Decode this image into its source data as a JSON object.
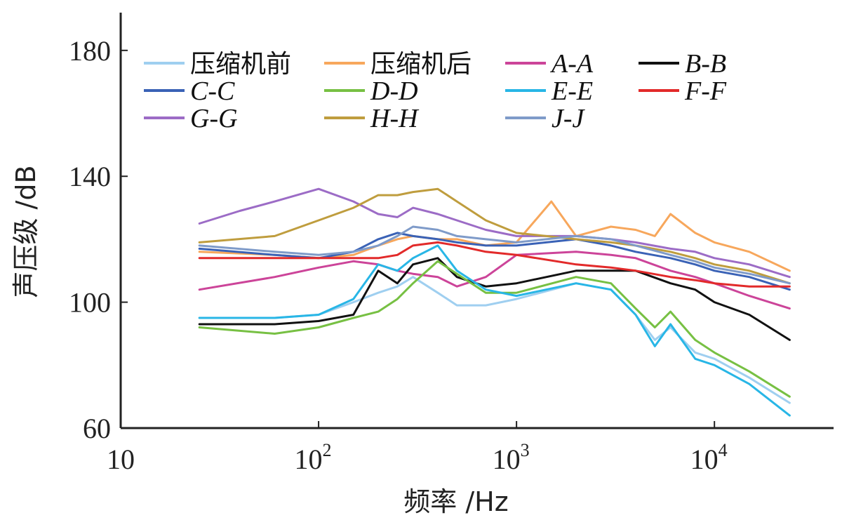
{
  "chart_data": {
    "type": "line",
    "title": "",
    "xlabel": "频率 /Hz",
    "ylabel": "声压级 /dB",
    "x_scale": "log",
    "xlim": [
      10,
      40000
    ],
    "ylim": [
      60,
      192
    ],
    "x_ticks": [
      {
        "value": 10,
        "base": "10",
        "exp": ""
      },
      {
        "value": 100,
        "base": "10",
        "exp": "2"
      },
      {
        "value": 1000,
        "base": "10",
        "exp": "3"
      },
      {
        "value": 10000,
        "base": "10",
        "exp": "4"
      }
    ],
    "y_ticks": [
      60,
      100,
      140,
      180
    ],
    "grid": false,
    "legend_position": "top",
    "series": [
      {
        "name": "压缩机前",
        "color": "#9fcff0",
        "x": [
          25,
          60,
          100,
          150,
          200,
          250,
          300,
          400,
          500,
          700,
          1000,
          2000,
          3000,
          4000,
          5000,
          6000,
          8000,
          10000,
          15000,
          24000
        ],
        "y": [
          95,
          95,
          96,
          100,
          103,
          105,
          108,
          103,
          99,
          99,
          101,
          106,
          104,
          96,
          88,
          92,
          84,
          82,
          76,
          68
        ]
      },
      {
        "name": "压缩机后",
        "color": "#f7a75c",
        "x": [
          25,
          60,
          100,
          150,
          200,
          250,
          300,
          400,
          500,
          700,
          1000,
          1500,
          2000,
          3000,
          4000,
          5000,
          6000,
          8000,
          10000,
          15000,
          24000
        ],
        "y": [
          116,
          115,
          114,
          115,
          118,
          120,
          121,
          120,
          120,
          118,
          119,
          132,
          121,
          124,
          123,
          121,
          128,
          122,
          119,
          116,
          110
        ]
      },
      {
        "name": "A-A",
        "color": "#cc4499",
        "x": [
          25,
          60,
          100,
          150,
          200,
          250,
          300,
          400,
          500,
          700,
          1000,
          2000,
          3000,
          4000,
          6000,
          8000,
          10000,
          15000,
          24000
        ],
        "y": [
          104,
          108,
          111,
          113,
          112,
          110,
          109,
          108,
          105,
          108,
          115,
          116,
          115,
          114,
          110,
          108,
          106,
          102,
          98
        ]
      },
      {
        "name": "B-B",
        "color": "#111111",
        "x": [
          25,
          60,
          100,
          150,
          200,
          250,
          300,
          400,
          500,
          700,
          1000,
          2000,
          3000,
          4000,
          6000,
          8000,
          10000,
          15000,
          24000
        ],
        "y": [
          93,
          93,
          94,
          96,
          110,
          106,
          112,
          114,
          108,
          105,
          106,
          110,
          110,
          110,
          106,
          104,
          100,
          96,
          88
        ]
      },
      {
        "name": "C-C",
        "color": "#3a62b6",
        "x": [
          25,
          60,
          100,
          150,
          200,
          250,
          300,
          400,
          500,
          700,
          1000,
          2000,
          3000,
          4000,
          6000,
          8000,
          10000,
          15000,
          24000
        ],
        "y": [
          117,
          115,
          114,
          116,
          120,
          122,
          121,
          120,
          119,
          118,
          118,
          120,
          118,
          116,
          114,
          112,
          110,
          108,
          104
        ]
      },
      {
        "name": "D-D",
        "color": "#77c043",
        "x": [
          25,
          60,
          100,
          150,
          200,
          250,
          300,
          400,
          500,
          700,
          1000,
          2000,
          3000,
          4000,
          5000,
          6000,
          8000,
          10000,
          15000,
          24000
        ],
        "y": [
          92,
          90,
          92,
          95,
          97,
          101,
          106,
          113,
          109,
          103,
          103,
          108,
          106,
          98,
          92,
          97,
          88,
          84,
          78,
          70
        ]
      },
      {
        "name": "E-E",
        "color": "#28b6e6",
        "x": [
          25,
          60,
          100,
          150,
          200,
          250,
          300,
          400,
          500,
          700,
          1000,
          2000,
          3000,
          4000,
          5000,
          6000,
          8000,
          10000,
          15000,
          24000
        ],
        "y": [
          95,
          95,
          96,
          101,
          112,
          110,
          114,
          118,
          110,
          104,
          102,
          106,
          104,
          96,
          86,
          93,
          82,
          80,
          74,
          64
        ]
      },
      {
        "name": "F-F",
        "color": "#e22a2a",
        "x": [
          25,
          60,
          100,
          150,
          200,
          250,
          300,
          400,
          500,
          700,
          1000,
          2000,
          3000,
          4000,
          6000,
          8000,
          10000,
          15000,
          24000
        ],
        "y": [
          114,
          114,
          114,
          114,
          114,
          115,
          118,
          119,
          118,
          116,
          115,
          112,
          111,
          110,
          108,
          107,
          106,
          105,
          105
        ]
      },
      {
        "name": "G-G",
        "color": "#9c6cc6",
        "x": [
          25,
          40,
          60,
          100,
          150,
          200,
          250,
          300,
          400,
          500,
          700,
          1000,
          2000,
          3000,
          4000,
          6000,
          8000,
          10000,
          15000,
          24000
        ],
        "y": [
          125,
          129,
          132,
          136,
          132,
          128,
          127,
          130,
          128,
          126,
          123,
          121,
          121,
          120,
          119,
          117,
          116,
          114,
          112,
          108
        ]
      },
      {
        "name": "H-H",
        "color": "#bf9d3e",
        "x": [
          25,
          60,
          100,
          150,
          200,
          250,
          300,
          400,
          500,
          700,
          1000,
          2000,
          3000,
          4000,
          6000,
          8000,
          10000,
          15000,
          24000
        ],
        "y": [
          119,
          121,
          126,
          130,
          134,
          134,
          135,
          136,
          132,
          126,
          122,
          120,
          119,
          118,
          116,
          114,
          112,
          110,
          106
        ]
      },
      {
        "name": "J-J",
        "color": "#7f9bc9",
        "x": [
          25,
          60,
          100,
          150,
          200,
          250,
          300,
          400,
          500,
          700,
          1000,
          2000,
          3000,
          4000,
          6000,
          8000,
          10000,
          15000,
          24000
        ],
        "y": [
          118,
          116,
          115,
          116,
          118,
          121,
          124,
          123,
          121,
          120,
          119,
          121,
          120,
          118,
          115,
          113,
          111,
          109,
          106
        ]
      }
    ]
  }
}
